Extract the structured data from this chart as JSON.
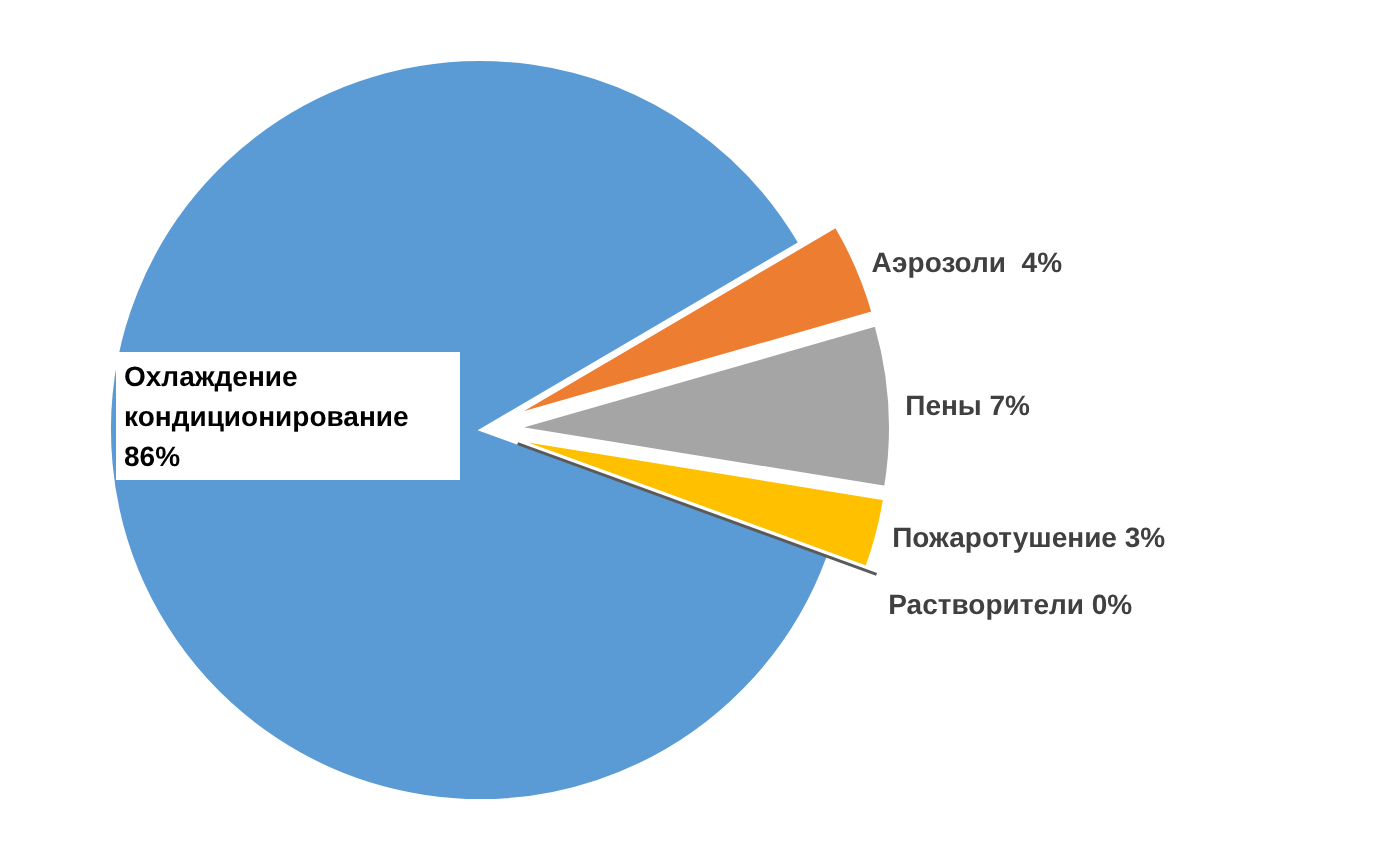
{
  "chart_data": {
    "type": "pie",
    "categories": [
      "Охлаждение кондиционирование",
      "Аэрозоли ",
      "Пены",
      "Пожаротушение",
      "Растворители"
    ],
    "values": [
      86,
      4,
      7,
      3,
      0
    ],
    "value_labels": [
      "86%",
      "4%",
      "7%",
      "3%",
      "0%"
    ],
    "colors": [
      "#5b9bd5",
      "#ed7d31",
      "#a5a5a5",
      "#ffc000",
      "#5a5a5a"
    ]
  }
}
